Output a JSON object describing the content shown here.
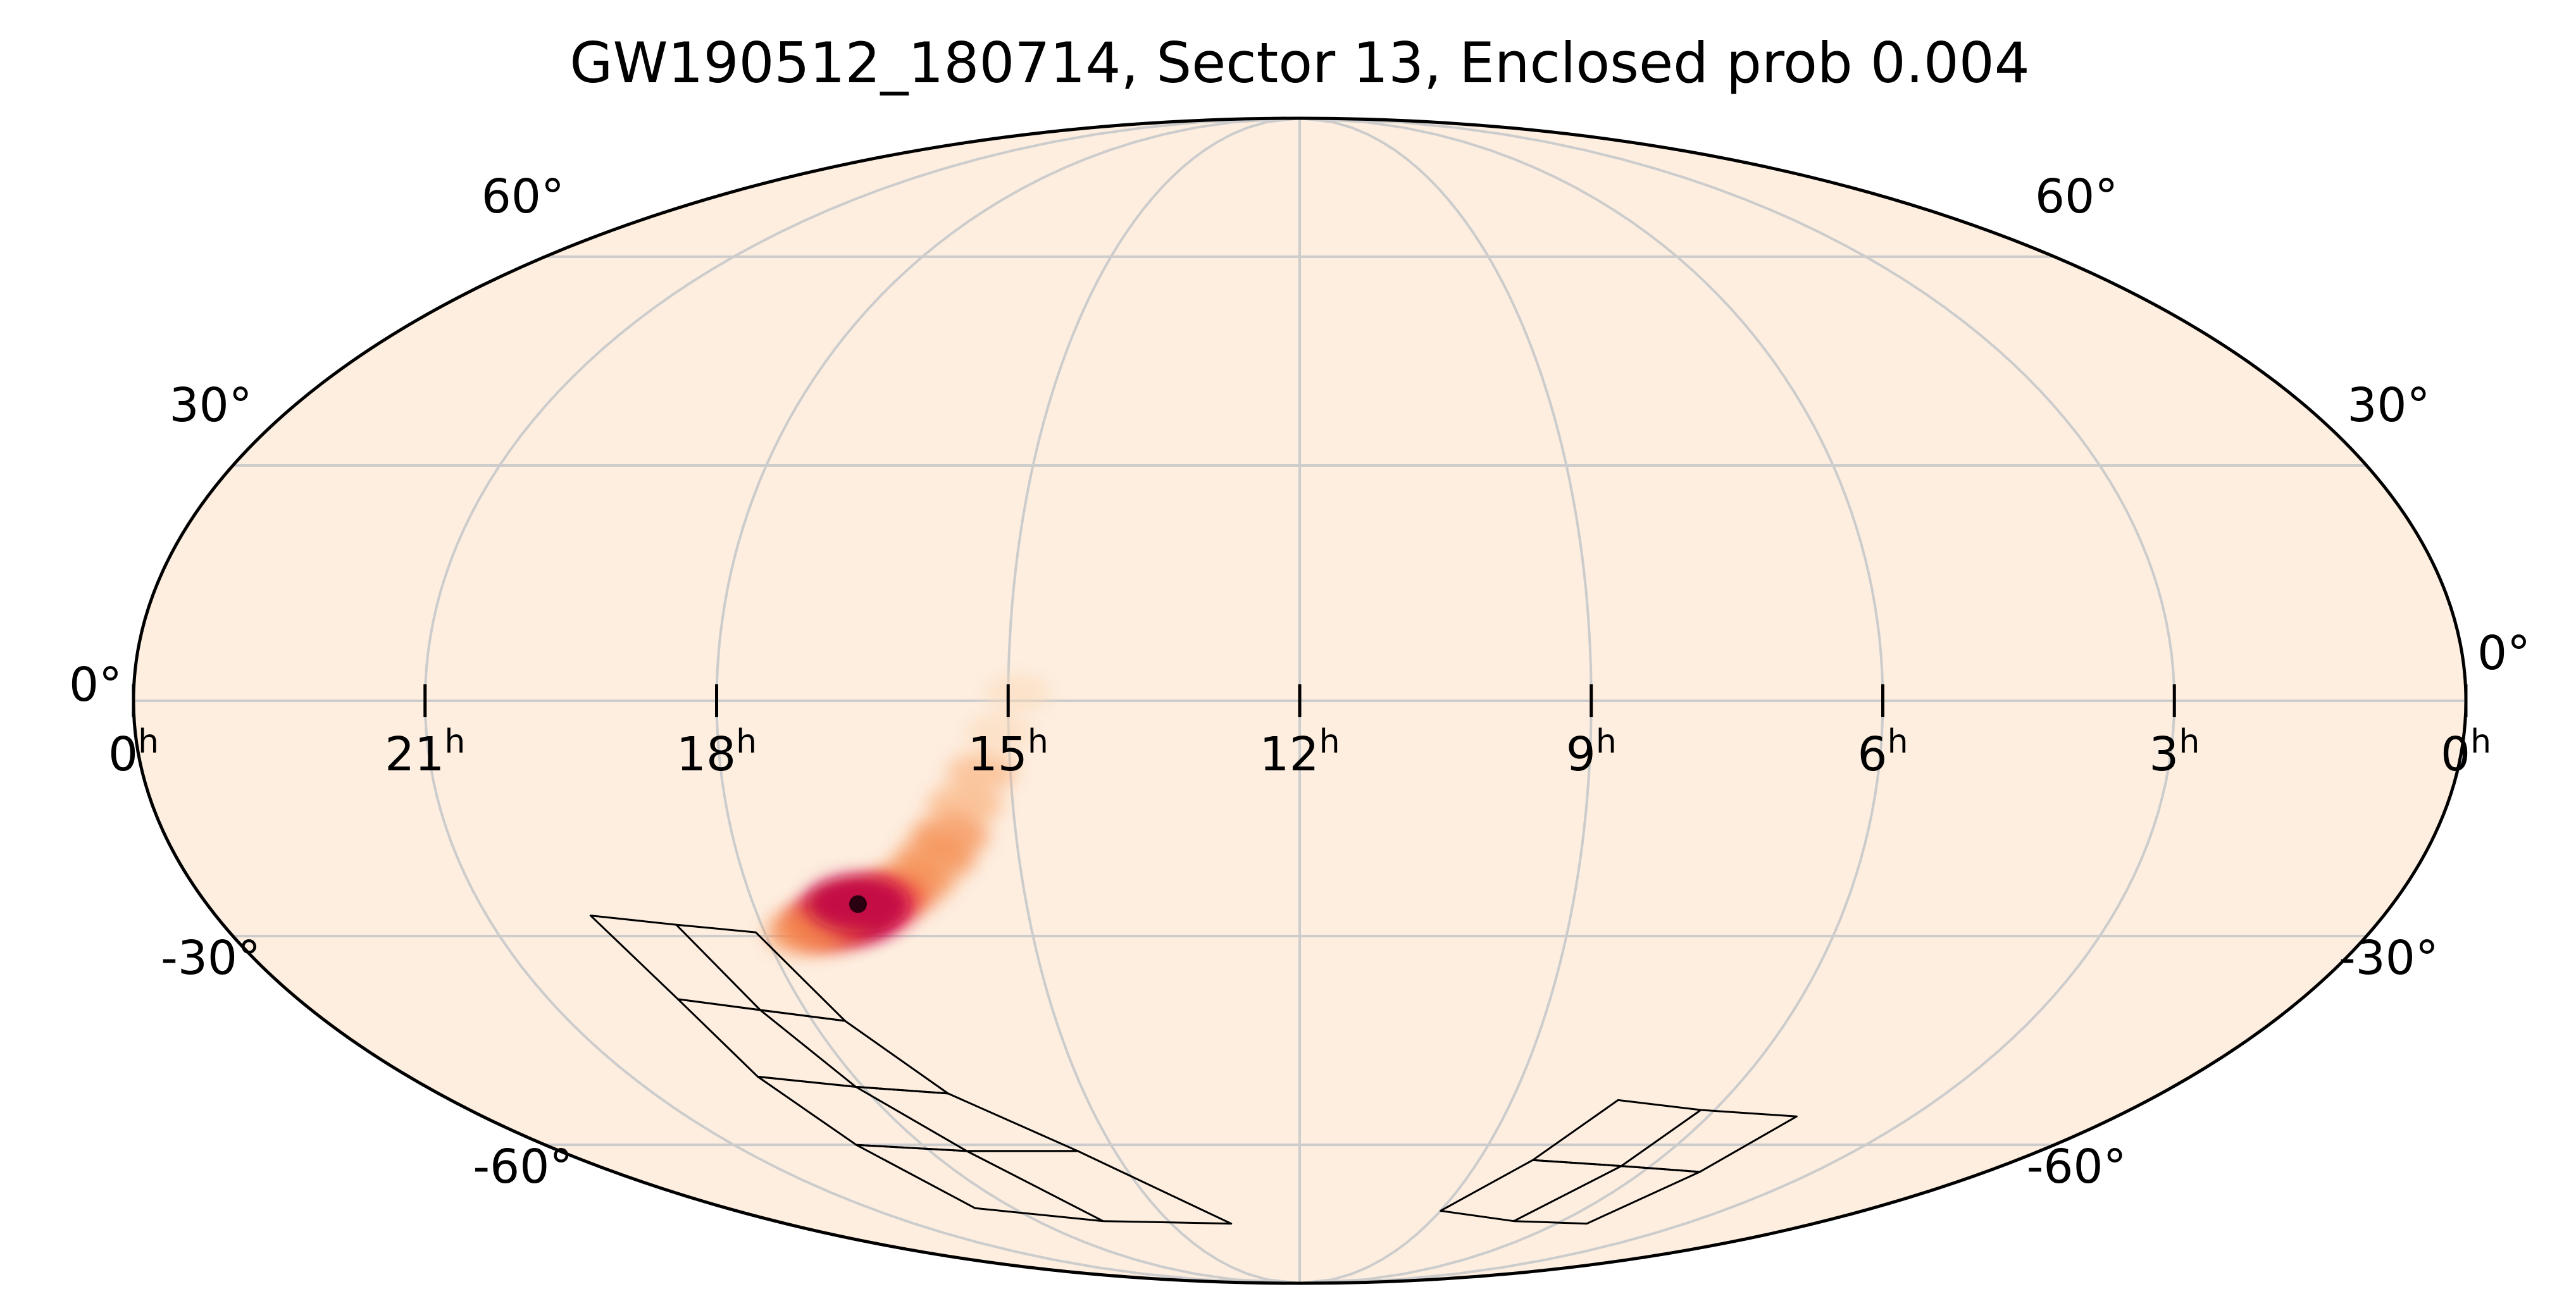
{
  "chart_data": {
    "type": "heatmap",
    "projection": "mollweide",
    "title": "GW190512_180714, Sector 13, Enclosed prob 0.004",
    "ra_ticks": [
      {
        "value": 24,
        "label": "0",
        "unit": "h"
      },
      {
        "value": 21,
        "label": "21",
        "unit": "h"
      },
      {
        "value": 18,
        "label": "18",
        "unit": "h"
      },
      {
        "value": 15,
        "label": "15",
        "unit": "h"
      },
      {
        "value": 12,
        "label": "12",
        "unit": "h"
      },
      {
        "value": 9,
        "label": "9",
        "unit": "h"
      },
      {
        "value": 6,
        "label": "6",
        "unit": "h"
      },
      {
        "value": 3,
        "label": "3",
        "unit": "h"
      },
      {
        "value": 0,
        "label": "0",
        "unit": "h"
      }
    ],
    "dec_ticks_left": [
      {
        "value": 60,
        "label": "60°"
      },
      {
        "value": 30,
        "label": "30°"
      },
      {
        "value": 0,
        "label": "0°"
      },
      {
        "value": -30,
        "label": "-30°"
      },
      {
        "value": -60,
        "label": "-60°"
      }
    ],
    "dec_ticks_right": [
      {
        "value": 60,
        "label": "60°"
      },
      {
        "value": 30,
        "label": "30°"
      },
      {
        "value": 0,
        "label": "0°"
      },
      {
        "value": -30,
        "label": "-30°"
      },
      {
        "value": -60,
        "label": "-60°"
      }
    ],
    "ra_range_hours": [
      24,
      0
    ],
    "dec_range_deg": [
      -90,
      90
    ],
    "grid": true,
    "colormap": "cylon (light peach background to red/black peak)",
    "background_color": "#fdeee0",
    "probability_blobs": [
      {
        "ra": 14.9,
        "dec": 1,
        "intensity": 0.04
      },
      {
        "ra": 15.1,
        "dec": -4,
        "intensity": 0.08
      },
      {
        "ra": 15.3,
        "dec": -9,
        "intensity": 0.16
      },
      {
        "ra": 15.5,
        "dec": -13,
        "intensity": 0.28
      },
      {
        "ra": 15.7,
        "dec": -17,
        "intensity": 0.35
      },
      {
        "ra": 15.9,
        "dec": -20,
        "intensity": 0.4
      },
      {
        "ra": 16.2,
        "dec": -23,
        "intensity": 0.45
      },
      {
        "ra": 16.5,
        "dec": -25,
        "intensity": 0.55
      },
      {
        "ra": 16.8,
        "dec": -26.5,
        "intensity": 0.75
      },
      {
        "ra": 17.05,
        "dec": -27.5,
        "intensity": 0.9
      },
      {
        "ra": 17.3,
        "dec": -28.5,
        "intensity": 0.65
      },
      {
        "ra": 17.55,
        "dec": -29.5,
        "intensity": 0.35
      },
      {
        "ra": 16.85,
        "dec": -25.8,
        "intensity": 1.0
      }
    ],
    "footprint_cameras": [
      {
        "name": "cameras-left",
        "rows": [
          [
            [
              19.85,
              -27.3
            ],
            [
              18.95,
              -28.5
            ],
            [
              18.1,
              -29.5
            ],
            [
              17.6,
              -41.5
            ],
            [
              18.55,
              -40
            ],
            [
              19.45,
              -38.5
            ]
          ],
          [
            [
              19.45,
              -38.5
            ],
            [
              18.55,
              -40
            ],
            [
              17.6,
              -41.5
            ],
            [
              16.9,
              -52
            ],
            [
              18.1,
              -51
            ],
            [
              19.3,
              -49.5
            ]
          ],
          [
            [
              19.3,
              -49.5
            ],
            [
              18.1,
              -51
            ],
            [
              16.9,
              -52
            ],
            [
              15.6,
              -61
            ],
            [
              17.4,
              -61
            ],
            [
              19.05,
              -60
            ]
          ],
          [
            [
              19.05,
              -60
            ],
            [
              17.4,
              -61
            ],
            [
              15.6,
              -61
            ],
            [
              13.6,
              -74
            ],
            [
              16.5,
              -73.5
            ],
            [
              18.8,
              -71
            ]
          ]
        ]
      },
      {
        "name": "cameras-right",
        "rows": [
          [
            [
              7.5,
              -53
            ],
            [
              6.2,
              -54.5
            ],
            [
              4.7,
              -55.5
            ],
            [
              5.0,
              -64.5
            ],
            [
              6.5,
              -63.5
            ],
            [
              8.1,
              -62.5
            ]
          ],
          [
            [
              8.1,
              -62.5
            ],
            [
              6.5,
              -63.5
            ],
            [
              5.0,
              -64.5
            ],
            [
              5.3,
              -74
            ],
            [
              7.1,
              -73.5
            ],
            [
              9.0,
              -71.5
            ]
          ]
        ]
      }
    ]
  }
}
